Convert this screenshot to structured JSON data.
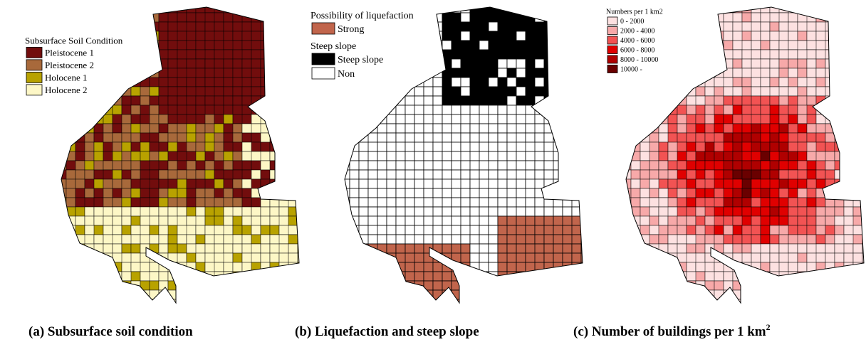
{
  "panels": [
    {
      "legend": [
        {
          "title": "Subsurface Soil Condition",
          "items": [
            {
              "label": "Pleistocene 1",
              "color": "#720d0d"
            },
            {
              "label": "Pleistocene 2",
              "color": "#a8693b"
            },
            {
              "label": "Holocene 1",
              "color": "#b8a200"
            },
            {
              "label": "Holocene 2",
              "color": "#fdf7c6"
            }
          ]
        }
      ],
      "caption": "(a) Subsurface soil condition"
    },
    {
      "legend": [
        {
          "title": "Possibility of liquefaction",
          "items": [
            {
              "label": "Strong",
              "color": "#c1654c"
            }
          ]
        },
        {
          "title": "Steep slope",
          "items": [
            {
              "label": "Steep slope",
              "color": "#000000"
            },
            {
              "label": "Non",
              "color": "#ffffff"
            }
          ]
        }
      ],
      "caption": "(b) Liquefaction and steep slope"
    },
    {
      "legend": [
        {
          "title": "Numbers per 1 km2",
          "items": [
            {
              "label": "0 - 2000",
              "color": "#fde1e1"
            },
            {
              "label": "2000 - 4000",
              "color": "#f7a9a9"
            },
            {
              "label": "4000 - 6000",
              "color": "#f25353"
            },
            {
              "label": "6000 - 8000",
              "color": "#e00000"
            },
            {
              "label": "8000 - 10000",
              "color": "#b00000"
            },
            {
              "label": "10000 -",
              "color": "#6a0000"
            }
          ]
        }
      ],
      "caption": "(c) Number of buildings per 1 km",
      "caption_sup": "2"
    }
  ]
}
